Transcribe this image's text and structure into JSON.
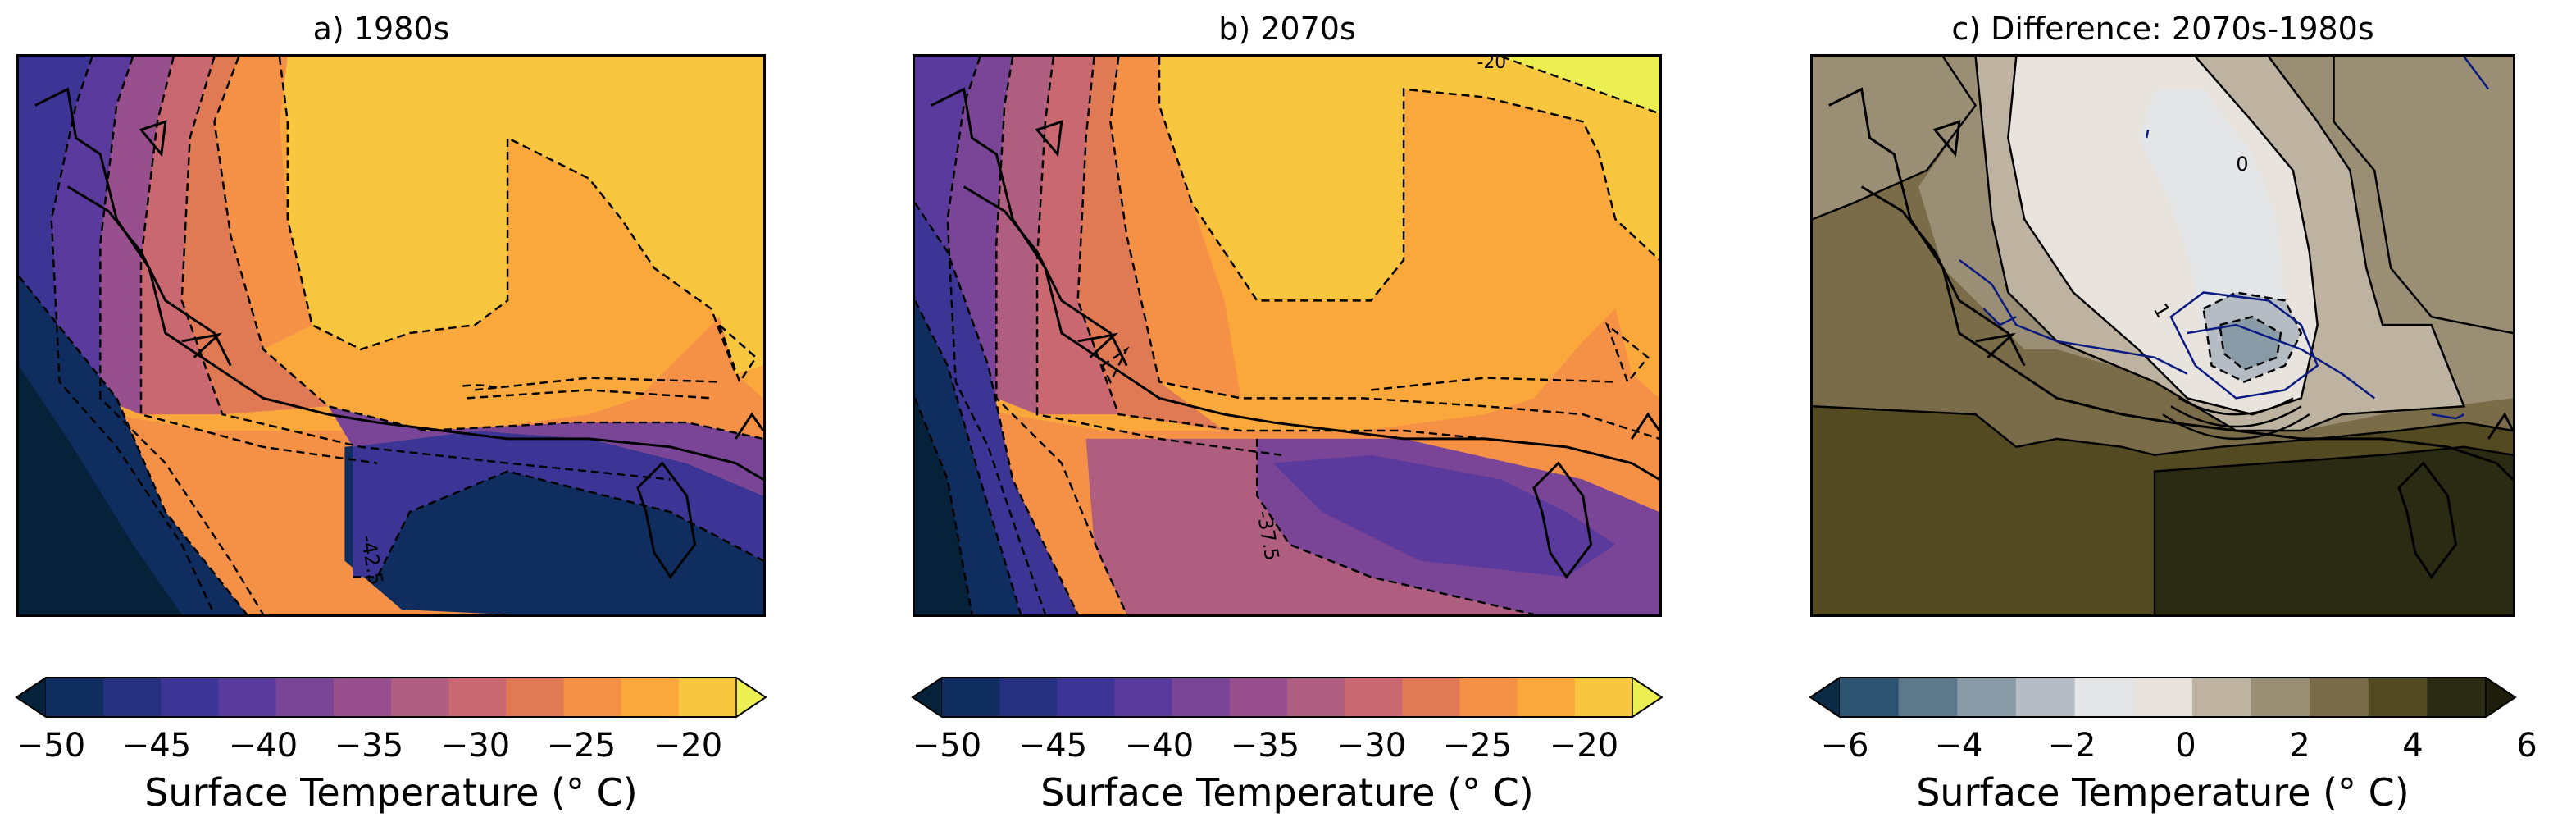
{
  "panels": [
    {
      "title": "a) 1980s",
      "contour_label": "-42.5",
      "colorbar": {
        "ticks": [
          "−50",
          "−45",
          "−40",
          "−35",
          "−30",
          "−25",
          "−20"
        ],
        "label": "Surface Temperature (° C)",
        "range": [
          -51.25,
          -17.5
        ],
        "step": 2.5,
        "extend": "both",
        "colors": [
          "#06223a",
          "#0f2d5e",
          "#253080",
          "#3d3596",
          "#5a3a9c",
          "#7a4596",
          "#97508d",
          "#b05e80",
          "#c96870",
          "#e07a55",
          "#f59147",
          "#faa83b",
          "#f8c63f",
          "#ecef52"
        ]
      }
    },
    {
      "title": "b) 2070s",
      "contour_label": "-37.5",
      "top_contour_label": "-20",
      "colorbar": {
        "ticks": [
          "−50",
          "−45",
          "−40",
          "−35",
          "−30",
          "−25",
          "−20"
        ],
        "label": "Surface Temperature (° C)",
        "range": [
          -51.25,
          -17.5
        ],
        "step": 2.5,
        "extend": "both",
        "colors": [
          "#06223a",
          "#0f2d5e",
          "#253080",
          "#3d3596",
          "#5a3a9c",
          "#7a4596",
          "#97508d",
          "#b05e80",
          "#c96870",
          "#e07a55",
          "#f59147",
          "#faa83b",
          "#f8c63f",
          "#ecef52"
        ]
      }
    },
    {
      "title": "c) Difference: 2070s-1980s",
      "contour_labels": [
        "0",
        "1"
      ],
      "colorbar": {
        "ticks": [
          "−6",
          "−4",
          "−2",
          "0",
          "2",
          "4",
          "6"
        ],
        "label": "Surface Temperature (° C)",
        "range": [
          -6,
          6
        ],
        "step": 1,
        "extend": "both",
        "colors": [
          "#0a2a45",
          "#2c5470",
          "#5c788b",
          "#8a9ba8",
          "#b5bcc3",
          "#e4e5e6",
          "#e8e3dc",
          "#bdb3a0",
          "#9a8f74",
          "#7a6c49",
          "#534a22",
          "#2b2a12",
          "#1e1d0c"
        ]
      }
    }
  ]
}
